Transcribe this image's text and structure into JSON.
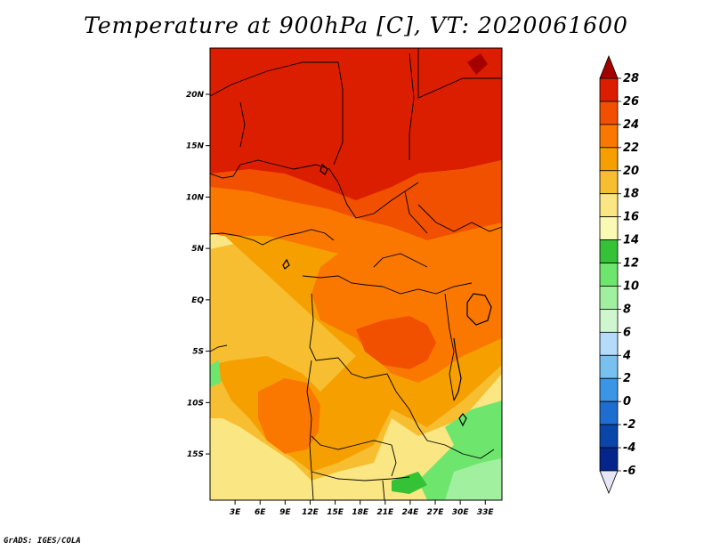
{
  "title": "Temperature at 900hPa [C], VT: 2020061600",
  "credit": "GrADS: IGES/COLA",
  "map": {
    "lat_range": [
      -19.5,
      24.5
    ],
    "lon_range": [
      0,
      35
    ],
    "lat_ticks": [
      {
        "value": 20,
        "label": "20N"
      },
      {
        "value": 15,
        "label": "15N"
      },
      {
        "value": 10,
        "label": "10N"
      },
      {
        "value": 5,
        "label": "5N"
      },
      {
        "value": 0,
        "label": "EQ"
      },
      {
        "value": -5,
        "label": "5S"
      },
      {
        "value": -10,
        "label": "10S"
      },
      {
        "value": -15,
        "label": "15S"
      }
    ],
    "lon_ticks": [
      {
        "value": 3,
        "label": "3E"
      },
      {
        "value": 6,
        "label": "6E"
      },
      {
        "value": 9,
        "label": "9E"
      },
      {
        "value": 12,
        "label": "12E"
      },
      {
        "value": 15,
        "label": "15E"
      },
      {
        "value": 18,
        "label": "18E"
      },
      {
        "value": 21,
        "label": "21E"
      },
      {
        "value": 24,
        "label": "24E"
      },
      {
        "value": 27,
        "label": "27E"
      },
      {
        "value": 30,
        "label": "30E"
      },
      {
        "value": 33,
        "label": "33E"
      }
    ]
  },
  "colorbar": {
    "levels": [
      "28",
      "26",
      "24",
      "22",
      "20",
      "18",
      "16",
      "14",
      "12",
      "10",
      "8",
      "6",
      "4",
      "2",
      "0",
      "-2",
      "-4",
      "-6"
    ],
    "colors": [
      "#a50000",
      "#dc1e00",
      "#f05000",
      "#fa7800",
      "#f5a000",
      "#f7be32",
      "#fae682",
      "#fafab4",
      "#36c236",
      "#6ee66e",
      "#a0f0a0",
      "#d0f6d0",
      "#b4dcfa",
      "#78c0f0",
      "#3c96e6",
      "#1e6ed2",
      "#0a46aa",
      "#05258a",
      "#000064",
      "#e6e6f5"
    ]
  }
}
